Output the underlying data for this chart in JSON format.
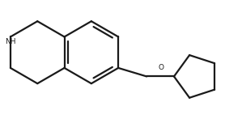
{
  "bg_color": "#ffffff",
  "line_color": "#1a1a1a",
  "line_width": 1.6,
  "nh_label": "NH",
  "o_label": "O",
  "figsize": [
    2.78,
    1.47
  ],
  "dpi": 100
}
